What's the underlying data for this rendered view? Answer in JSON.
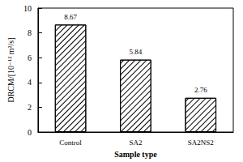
{
  "chart_data": {
    "type": "bar",
    "x_label": "Sample type",
    "y_label": "DRCM/[10⁻¹² m²/s]",
    "categories": [
      "Control",
      "SA2",
      "SA2NS2"
    ],
    "values": [
      8.67,
      5.84,
      2.76
    ],
    "color": "#000000",
    "ylim": [
      0,
      10
    ],
    "yticks": [
      0,
      2,
      4,
      6,
      8,
      10
    ],
    "grid": false,
    "data_labels": true
  }
}
